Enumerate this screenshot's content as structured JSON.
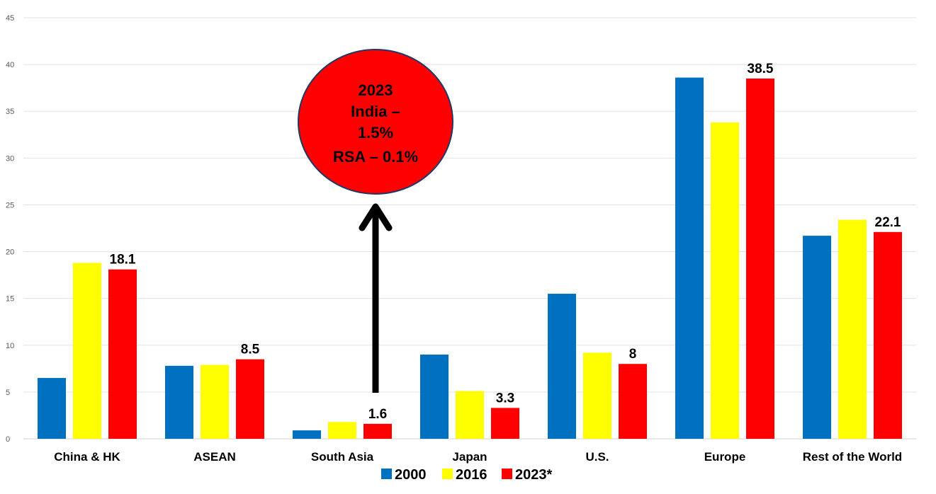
{
  "chart_data": {
    "type": "bar",
    "categories": [
      "China & HK",
      "ASEAN",
      "South Asia",
      "Japan",
      "U.S.",
      "Europe",
      "Rest of the World"
    ],
    "series": [
      {
        "name": "2000",
        "color": "#0070C0",
        "values": [
          6.5,
          7.8,
          0.9,
          9.0,
          15.5,
          38.6,
          21.7
        ]
      },
      {
        "name": "2016",
        "color": "#FFFF00",
        "values": [
          18.8,
          7.9,
          1.8,
          5.1,
          9.2,
          33.8,
          23.4
        ]
      },
      {
        "name": "2023*",
        "color": "#FF0000",
        "values": [
          18.1,
          8.5,
          1.6,
          3.3,
          8.0,
          38.5,
          22.1
        ]
      }
    ],
    "data_labels": {
      "series": "2023*",
      "values": [
        "18.1",
        "8.5",
        "1.6",
        "3.3",
        "8",
        "38.5",
        "22.1"
      ]
    },
    "ylim": [
      0,
      45
    ],
    "yticks": [
      "0",
      "5",
      "10",
      "15",
      "20",
      "25",
      "30",
      "35",
      "40",
      "45"
    ],
    "grid": true,
    "legend_position": "bottom-center",
    "annotation": {
      "lines": [
        "2023",
        "India –",
        "1.5%",
        "RSA – 0.1%"
      ],
      "fill": "#FF0000",
      "points_to": "South Asia"
    }
  }
}
